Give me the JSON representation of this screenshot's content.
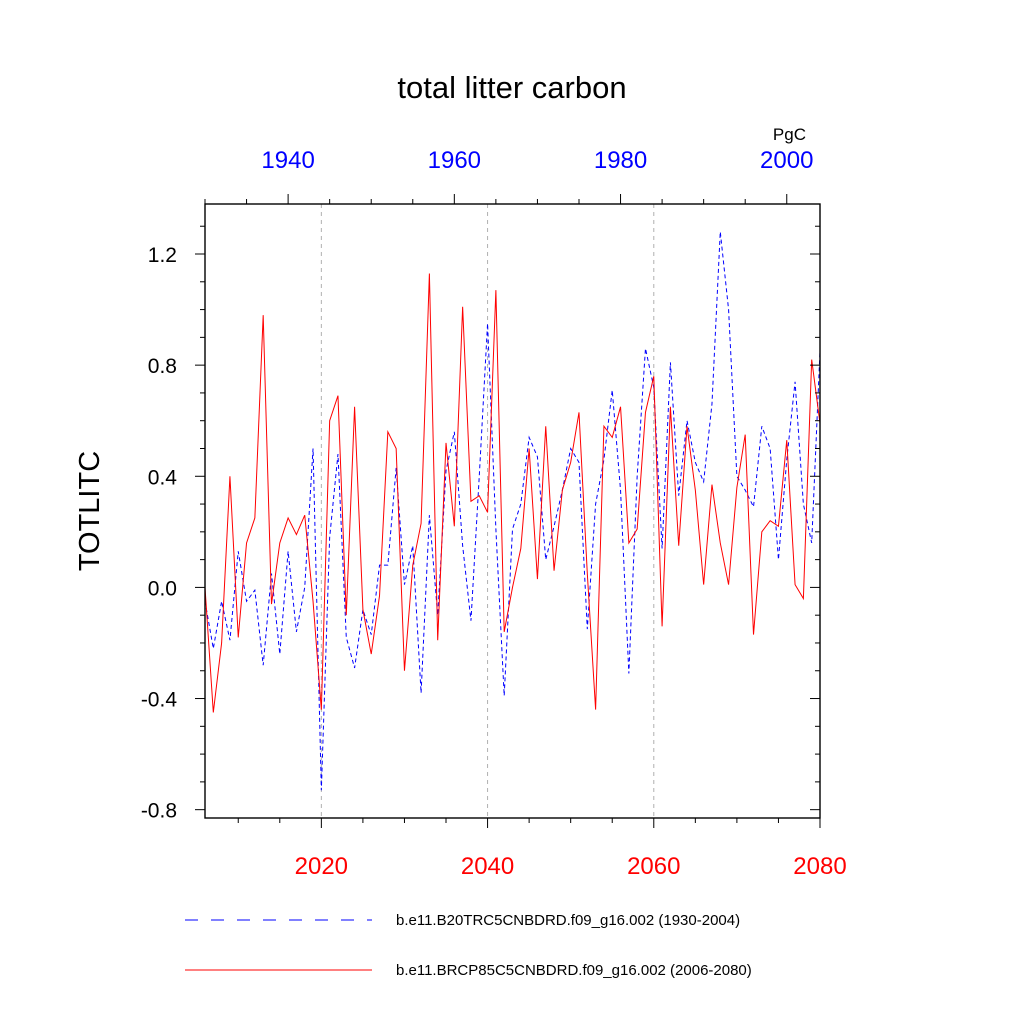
{
  "chart_data": {
    "type": "line",
    "title": "total litter carbon",
    "ylabel": "TOTLITC",
    "units": "PgC",
    "ylim": [
      -0.83,
      1.38
    ],
    "yticks": [
      -0.8,
      -0.4,
      0.0,
      0.4,
      0.8,
      1.2
    ],
    "ytick_labels": [
      "-0.8",
      "-0.4",
      "0.0",
      "0.4",
      "0.8",
      "1.2"
    ],
    "bottom_axis": {
      "range": [
        2006,
        2080
      ],
      "ticks": [
        2020,
        2040,
        2060,
        2080
      ],
      "tick_labels": [
        "2020",
        "2040",
        "2060",
        "2080"
      ],
      "color": "#ff0000"
    },
    "top_axis": {
      "range": [
        1930,
        2004
      ],
      "ticks": [
        1940,
        1960,
        1980,
        2000
      ],
      "tick_labels": [
        "1940",
        "1960",
        "1980",
        "2000"
      ],
      "color": "#0000ff"
    },
    "gridlines_bottom_years": [
      2020,
      2040,
      2060
    ],
    "series": [
      {
        "name": "b.e11.B20TRC5CNBDRD.f09_g16.002 (1930-2004)",
        "color": "#0000ff",
        "style": "dashed",
        "x_start": 1930,
        "values": [
          -0.05,
          -0.22,
          -0.05,
          -0.19,
          0.13,
          -0.05,
          -0.01,
          -0.28,
          0.05,
          -0.24,
          0.13,
          -0.16,
          0.0,
          0.5,
          -0.73,
          0.18,
          0.48,
          -0.18,
          -0.29,
          -0.08,
          -0.17,
          0.08,
          0.08,
          0.43,
          0.01,
          0.15,
          -0.38,
          0.26,
          -0.1,
          0.42,
          0.56,
          0.15,
          -0.12,
          0.4,
          0.95,
          0.21,
          -0.39,
          0.21,
          0.3,
          0.54,
          0.47,
          0.1,
          0.22,
          0.35,
          0.5,
          0.45,
          -0.15,
          0.3,
          0.46,
          0.71,
          0.35,
          -0.31,
          0.4,
          0.86,
          0.72,
          0.14,
          0.81,
          0.33,
          0.6,
          0.45,
          0.38,
          0.66,
          1.28,
          1.0,
          0.4,
          0.35,
          0.29,
          0.58,
          0.5,
          0.1,
          0.46,
          0.74,
          0.3,
          0.16,
          0.85
        ]
      },
      {
        "name": "b.e11.BRCP85C5CNBDRD.f09_g16.002 (2006-2080)",
        "color": "#ff0000",
        "style": "solid",
        "x_start": 2006,
        "values": [
          0.0,
          -0.45,
          -0.2,
          0.4,
          -0.18,
          0.16,
          0.25,
          0.98,
          -0.06,
          0.16,
          0.25,
          0.19,
          0.26,
          -0.05,
          -0.44,
          0.6,
          0.69,
          -0.1,
          0.65,
          -0.08,
          -0.24,
          -0.03,
          0.56,
          0.5,
          -0.3,
          0.08,
          0.23,
          1.13,
          -0.19,
          0.52,
          0.22,
          1.01,
          0.31,
          0.33,
          0.27,
          1.07,
          -0.16,
          0.0,
          0.14,
          0.5,
          0.03,
          0.58,
          0.06,
          0.35,
          0.45,
          0.63,
          0.05,
          -0.44,
          0.58,
          0.54,
          0.65,
          0.16,
          0.21,
          0.63,
          0.76,
          -0.14,
          0.65,
          0.15,
          0.58,
          0.35,
          0.01,
          0.37,
          0.16,
          0.01,
          0.36,
          0.55,
          -0.17,
          0.2,
          0.24,
          0.22,
          0.53,
          0.01,
          -0.04,
          0.82,
          0.59
        ]
      }
    ]
  }
}
